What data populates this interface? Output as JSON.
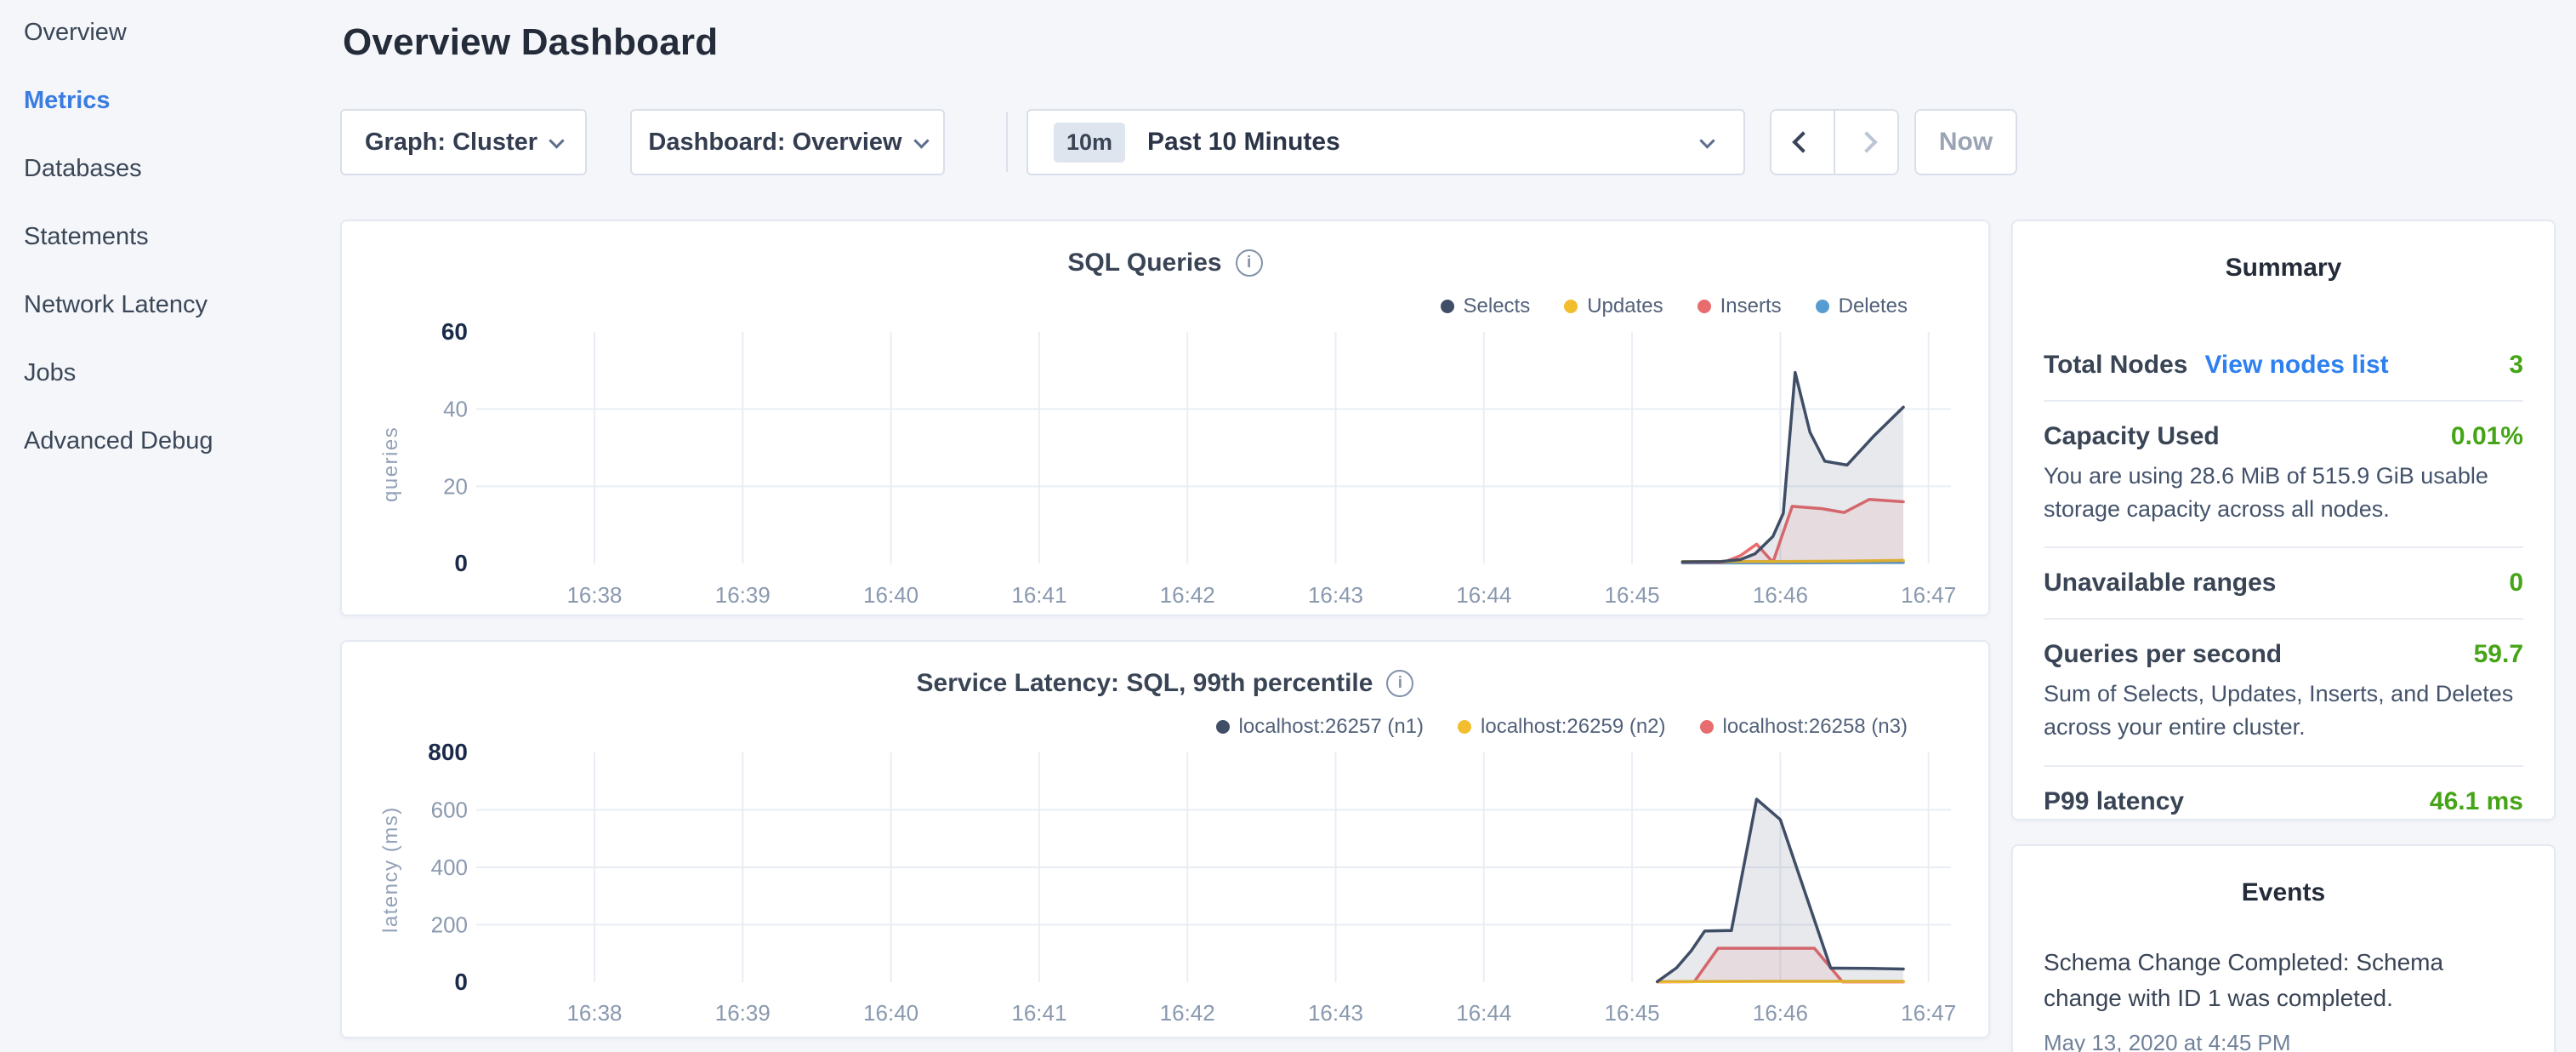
{
  "sidebar": {
    "items": [
      {
        "label": "Overview",
        "active": false
      },
      {
        "label": "Metrics",
        "active": true
      },
      {
        "label": "Databases",
        "active": false
      },
      {
        "label": "Statements",
        "active": false
      },
      {
        "label": "Network Latency",
        "active": false
      },
      {
        "label": "Jobs",
        "active": false
      },
      {
        "label": "Advanced Debug",
        "active": false
      }
    ]
  },
  "header": {
    "title": "Overview Dashboard"
  },
  "controls": {
    "graph_dropdown": {
      "label": "Graph: Cluster"
    },
    "dashboard_dropdown": {
      "label": "Dashboard: Overview"
    },
    "time_window": {
      "badge": "10m",
      "label": "Past 10 Minutes"
    },
    "now_button": "Now"
  },
  "colors": {
    "active_nav_blue": "#3a7ce1",
    "link_blue": "#2e80f0",
    "value_green": "#46a417",
    "series_navy": "#3f4e66",
    "series_yellow": "#f2be2d",
    "series_red": "#e86c6e",
    "series_blue": "#569cd1"
  },
  "chart_data": [
    {
      "type": "area",
      "title": "SQL Queries",
      "xlabel": "",
      "ylabel": "queries",
      "ylim": [
        0,
        60
      ],
      "yticks": [
        0,
        20,
        40,
        60
      ],
      "grid": true,
      "legend_position": "top-right",
      "x_ticks": [
        "16:38",
        "16:39",
        "16:40",
        "16:41",
        "16:42",
        "16:43",
        "16:44",
        "16:45",
        "16:46",
        "16:47"
      ],
      "x_tick_values": [
        38,
        39,
        40,
        41,
        42,
        43,
        44,
        45,
        46,
        47
      ],
      "series": [
        {
          "name": "Selects",
          "color": "#3f4e66",
          "fill": "rgba(63,78,102,0.12)",
          "points": [
            [
              45.34,
              0.4
            ],
            [
              45.6,
              0.5
            ],
            [
              45.73,
              1.0
            ],
            [
              45.83,
              2.5
            ],
            [
              45.95,
              7.0
            ],
            [
              46.02,
              13.0
            ],
            [
              46.1,
              49.5
            ],
            [
              46.2,
              34.0
            ],
            [
              46.3,
              26.5
            ],
            [
              46.45,
              25.5
            ],
            [
              46.63,
              33.0
            ],
            [
              46.83,
              40.5
            ]
          ]
        },
        {
          "name": "Updates",
          "color": "#f2be2d",
          "points": [
            [
              45.34,
              0.5
            ],
            [
              46.0,
              0.5
            ],
            [
              46.45,
              0.6
            ],
            [
              46.83,
              0.8
            ]
          ]
        },
        {
          "name": "Inserts",
          "color": "#e86c6e",
          "fill": "rgba(232,108,110,0.10)",
          "points": [
            [
              45.34,
              0.3
            ],
            [
              45.62,
              0.3
            ],
            [
              45.73,
              2.0
            ],
            [
              45.84,
              5.0
            ],
            [
              45.95,
              0.3
            ],
            [
              46.08,
              14.8
            ],
            [
              46.28,
              14.2
            ],
            [
              46.43,
              13.2
            ],
            [
              46.6,
              16.6
            ],
            [
              46.83,
              16.0
            ]
          ]
        },
        {
          "name": "Deletes",
          "color": "#569cd1",
          "points": [
            [
              45.34,
              0.15
            ],
            [
              46.0,
              0.15
            ],
            [
              46.83,
              0.25
            ]
          ]
        }
      ]
    },
    {
      "type": "area",
      "title": "Service Latency: SQL, 99th percentile",
      "xlabel": "",
      "ylabel": "latency (ms)",
      "ylim": [
        0,
        800
      ],
      "yticks": [
        0,
        200,
        400,
        600,
        800
      ],
      "grid": true,
      "legend_position": "top-right",
      "x_ticks": [
        "16:38",
        "16:39",
        "16:40",
        "16:41",
        "16:42",
        "16:43",
        "16:44",
        "16:45",
        "16:46",
        "16:47"
      ],
      "x_tick_values": [
        38,
        39,
        40,
        41,
        42,
        43,
        44,
        45,
        46,
        47
      ],
      "series": [
        {
          "name": "localhost:26257 (n1)",
          "color": "#3f4e66",
          "fill": "rgba(63,78,102,0.12)",
          "points": [
            [
              45.17,
              2
            ],
            [
              45.3,
              50
            ],
            [
              45.4,
              110
            ],
            [
              45.49,
              178
            ],
            [
              45.67,
              180
            ],
            [
              45.84,
              637
            ],
            [
              46.0,
              566
            ],
            [
              46.34,
              49
            ],
            [
              46.6,
              48
            ],
            [
              46.83,
              46
            ]
          ]
        },
        {
          "name": "localhost:26259 (n2)",
          "color": "#f2be2d",
          "points": [
            [
              45.17,
              2
            ],
            [
              46.0,
              3
            ],
            [
              46.83,
              3
            ]
          ]
        },
        {
          "name": "localhost:26258 (n3)",
          "color": "#e86c6e",
          "fill": "rgba(232,108,110,0.10)",
          "points": [
            [
              45.17,
              1
            ],
            [
              45.42,
              2
            ],
            [
              45.58,
              118
            ],
            [
              46.23,
              118
            ],
            [
              46.42,
              1
            ],
            [
              46.83,
              1
            ]
          ]
        }
      ]
    }
  ],
  "summary": {
    "title": "Summary",
    "rows": [
      {
        "label": "Total Nodes",
        "link": "View nodes list",
        "value": "3"
      },
      {
        "label": "Capacity Used",
        "value": "0.01%",
        "subtext": "You are using 28.6 MiB of 515.9 GiB usable storage capacity across all nodes."
      },
      {
        "label": "Unavailable ranges",
        "value": "0"
      },
      {
        "label": "Queries per second",
        "value": "59.7",
        "subtext": "Sum of Selects, Updates, Inserts, and Deletes across your entire cluster."
      },
      {
        "label": "P99 latency",
        "value": "46.1 ms"
      }
    ]
  },
  "events": {
    "title": "Events",
    "items": [
      {
        "text": "Schema Change Completed: Schema change with ID 1 was completed.",
        "timestamp": "May 13, 2020 at 4:45 PM"
      }
    ]
  }
}
